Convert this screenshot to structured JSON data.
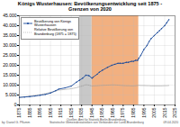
{
  "chart_data": {
    "type": "line",
    "title": "Königs Wusterhausen: Bevölkerungsentwicklung seit 1875 -\nGrenzen von 2020",
    "x": [
      1875,
      1880,
      1885,
      1890,
      1895,
      1900,
      1905,
      1910,
      1913,
      1919,
      1925,
      1930,
      1933,
      1936,
      1939,
      1942,
      1945,
      1946,
      1950,
      1952,
      1955,
      1960,
      1964,
      1967,
      1970,
      1972,
      1975,
      1978,
      1980,
      1983,
      1985,
      1987,
      1989,
      1990,
      1992,
      1995,
      1998,
      2000,
      2002,
      2005,
      2008,
      2010,
      2012,
      2015,
      2017,
      2019
    ],
    "series": [
      {
        "name": "Bevölkerung von Königs\nWusterhausen",
        "color": "#1a4a9a",
        "line_style": "solid",
        "marker": "circle",
        "values": [
          3800,
          4000,
          4200,
          4500,
          4900,
          5300,
          6000,
          7200,
          8000,
          8600,
          9500,
          11500,
          12500,
          13500,
          15000,
          14800,
          13500,
          14000,
          15500,
          16500,
          17500,
          19000,
          20000,
          20500,
          21000,
          21000,
          21000,
          21500,
          21500,
          22000,
          22000,
          22500,
          22500,
          23500,
          25000,
          28000,
          30000,
          32000,
          33500,
          35000,
          36500,
          37500,
          38500,
          40000,
          41500,
          43000
        ]
      },
      {
        "name": "Relative Bevölkerung von\nBrandenburg (1875 = 1875)",
        "color": "#999999",
        "line_style": "dotted",
        "values": [
          3800,
          4100,
          4400,
          4800,
          5200,
          5700,
          6300,
          7000,
          7500,
          7800,
          8200,
          8700,
          9200,
          9600,
          10200,
          10000,
          9500,
          9600,
          9700,
          9800,
          9900,
          10000,
          10100,
          10100,
          10000,
          9900,
          9800,
          9700,
          9700,
          9600,
          9600,
          9700,
          9800,
          9900,
          9800,
          9800,
          9700,
          9700,
          9600,
          9600,
          9600,
          9600,
          9600,
          9700,
          9700,
          9800
        ]
      }
    ],
    "spans": [
      {
        "start": 1933,
        "end": 1945,
        "color": "#c8c8c8"
      },
      {
        "start": 1945,
        "end": 1990,
        "color": "#f2b080"
      }
    ],
    "xlim": [
      1875,
      2025
    ],
    "xticks": [
      1875,
      1885,
      1895,
      1905,
      1915,
      1925,
      1935,
      1945,
      1955,
      1965,
      1975,
      1985,
      1995,
      2005,
      2015,
      2025
    ],
    "ylim": [
      0,
      45000
    ],
    "yticks": [
      0,
      {
        "value": 5000,
        "label": "5.000"
      },
      {
        "value": 10000,
        "label": "10.000"
      },
      {
        "value": 15000,
        "label": "15.000"
      },
      {
        "value": 20000,
        "label": "20.000"
      },
      {
        "value": 25000,
        "label": "25.000"
      },
      {
        "value": 30000,
        "label": "30.000"
      },
      {
        "value": 35000,
        "label": "35.000"
      },
      {
        "value": 40000,
        "label": "40.000"
      },
      {
        "value": 45000,
        "label": "45.000"
      }
    ],
    "grid": true,
    "legend": "upper left",
    "annotations": [
      "by: Daniel G. Pflumm",
      "Quellen: Amt für Statistik Berlin-Brandenburg,\nStatistische Gemeindestatistiken von Verbänden der Land-Brandenburg",
      "09.04.2020"
    ]
  }
}
